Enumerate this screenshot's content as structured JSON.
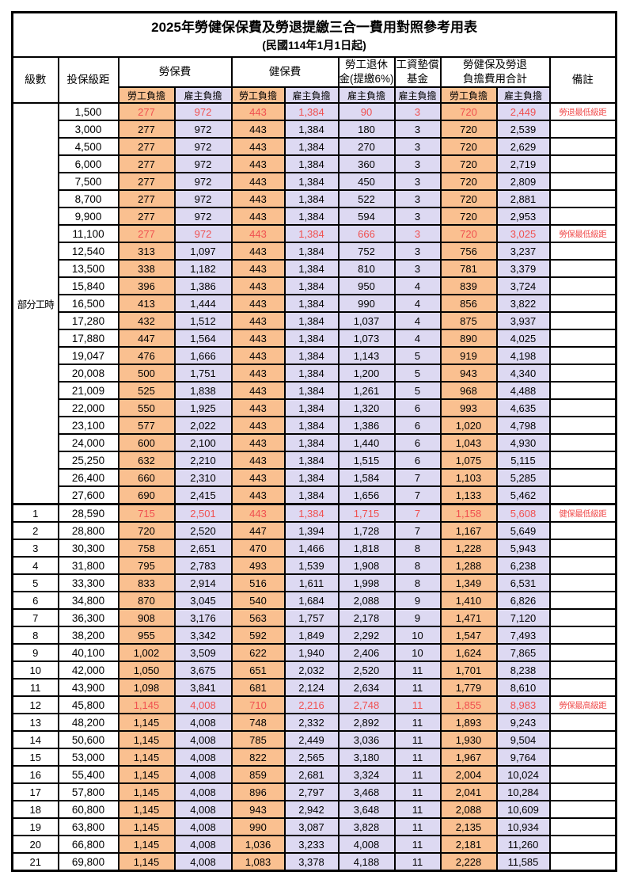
{
  "title": "2025年勞健保保費及勞退提繳三合一費用對照參考用表",
  "subtitle": "(民國114年1月1日起)",
  "colors": {
    "employee_bg": "#FAC090",
    "employer_bg": "#DDD9F2",
    "highlight_red": "#F05050"
  },
  "header": {
    "level": "級數",
    "bracket": "投保級距",
    "labor_ins": "勞保費",
    "health_ins": "健保費",
    "pension": "勞工退休\n金(提繳6%)",
    "wage_fund": "工資墊償\n基金",
    "total": "勞健保及勞退\n負擔費用合計",
    "remark": "備註",
    "employee": "勞工負擔",
    "employer": "雇主負擔"
  },
  "part_time_label": "部分工時",
  "part_time_rowspan": 23,
  "rows": [
    {
      "level": "",
      "bracket": "1,500",
      "cells": [
        "277",
        "972",
        "443",
        "1,384",
        "90",
        "3",
        "720",
        "2,449"
      ],
      "remark": "勞退最低級距",
      "red": true,
      "thick_top": false
    },
    {
      "level": "",
      "bracket": "3,000",
      "cells": [
        "277",
        "972",
        "443",
        "1,384",
        "180",
        "3",
        "720",
        "2,539"
      ],
      "remark": "",
      "red": false,
      "thick_top": false
    },
    {
      "level": "",
      "bracket": "4,500",
      "cells": [
        "277",
        "972",
        "443",
        "1,384",
        "270",
        "3",
        "720",
        "2,629"
      ],
      "remark": "",
      "red": false,
      "thick_top": false
    },
    {
      "level": "",
      "bracket": "6,000",
      "cells": [
        "277",
        "972",
        "443",
        "1,384",
        "360",
        "3",
        "720",
        "2,719"
      ],
      "remark": "",
      "red": false,
      "thick_top": false
    },
    {
      "level": "",
      "bracket": "7,500",
      "cells": [
        "277",
        "972",
        "443",
        "1,384",
        "450",
        "3",
        "720",
        "2,809"
      ],
      "remark": "",
      "red": false,
      "thick_top": false
    },
    {
      "level": "",
      "bracket": "8,700",
      "cells": [
        "277",
        "972",
        "443",
        "1,384",
        "522",
        "3",
        "720",
        "2,881"
      ],
      "remark": "",
      "red": false,
      "thick_top": false
    },
    {
      "level": "",
      "bracket": "9,900",
      "cells": [
        "277",
        "972",
        "443",
        "1,384",
        "594",
        "3",
        "720",
        "2,953"
      ],
      "remark": "",
      "red": false,
      "thick_top": false
    },
    {
      "level": "",
      "bracket": "11,100",
      "cells": [
        "277",
        "972",
        "443",
        "1,384",
        "666",
        "3",
        "720",
        "3,025"
      ],
      "remark": "勞保最低級距",
      "red": true,
      "thick_top": false
    },
    {
      "level": "",
      "bracket": "12,540",
      "cells": [
        "313",
        "1,097",
        "443",
        "1,384",
        "752",
        "3",
        "756",
        "3,237"
      ],
      "remark": "",
      "red": false,
      "thick_top": false
    },
    {
      "level": "",
      "bracket": "13,500",
      "cells": [
        "338",
        "1,182",
        "443",
        "1,384",
        "810",
        "3",
        "781",
        "3,379"
      ],
      "remark": "",
      "red": false,
      "thick_top": false
    },
    {
      "level": "",
      "bracket": "15,840",
      "cells": [
        "396",
        "1,386",
        "443",
        "1,384",
        "950",
        "4",
        "839",
        "3,724"
      ],
      "remark": "",
      "red": false,
      "thick_top": false
    },
    {
      "level": "",
      "bracket": "16,500",
      "cells": [
        "413",
        "1,444",
        "443",
        "1,384",
        "990",
        "4",
        "856",
        "3,822"
      ],
      "remark": "",
      "red": false,
      "thick_top": false
    },
    {
      "level": "",
      "bracket": "17,280",
      "cells": [
        "432",
        "1,512",
        "443",
        "1,384",
        "1,037",
        "4",
        "875",
        "3,937"
      ],
      "remark": "",
      "red": false,
      "thick_top": false
    },
    {
      "level": "",
      "bracket": "17,880",
      "cells": [
        "447",
        "1,564",
        "443",
        "1,384",
        "1,073",
        "4",
        "890",
        "4,025"
      ],
      "remark": "",
      "red": false,
      "thick_top": false
    },
    {
      "level": "",
      "bracket": "19,047",
      "cells": [
        "476",
        "1,666",
        "443",
        "1,384",
        "1,143",
        "5",
        "919",
        "4,198"
      ],
      "remark": "",
      "red": false,
      "thick_top": false
    },
    {
      "level": "",
      "bracket": "20,008",
      "cells": [
        "500",
        "1,751",
        "443",
        "1,384",
        "1,200",
        "5",
        "943",
        "4,340"
      ],
      "remark": "",
      "red": false,
      "thick_top": false
    },
    {
      "level": "",
      "bracket": "21,009",
      "cells": [
        "525",
        "1,838",
        "443",
        "1,384",
        "1,261",
        "5",
        "968",
        "4,488"
      ],
      "remark": "",
      "red": false,
      "thick_top": false
    },
    {
      "level": "",
      "bracket": "22,000",
      "cells": [
        "550",
        "1,925",
        "443",
        "1,384",
        "1,320",
        "6",
        "993",
        "4,635"
      ],
      "remark": "",
      "red": false,
      "thick_top": false
    },
    {
      "level": "",
      "bracket": "23,100",
      "cells": [
        "577",
        "2,022",
        "443",
        "1,384",
        "1,386",
        "6",
        "1,020",
        "4,798"
      ],
      "remark": "",
      "red": false,
      "thick_top": false
    },
    {
      "level": "",
      "bracket": "24,000",
      "cells": [
        "600",
        "2,100",
        "443",
        "1,384",
        "1,440",
        "6",
        "1,043",
        "4,930"
      ],
      "remark": "",
      "red": false,
      "thick_top": false
    },
    {
      "level": "",
      "bracket": "25,250",
      "cells": [
        "632",
        "2,210",
        "443",
        "1,384",
        "1,515",
        "6",
        "1,075",
        "5,115"
      ],
      "remark": "",
      "red": false,
      "thick_top": false
    },
    {
      "level": "",
      "bracket": "26,400",
      "cells": [
        "660",
        "2,310",
        "443",
        "1,384",
        "1,584",
        "7",
        "1,103",
        "5,285"
      ],
      "remark": "",
      "red": false,
      "thick_top": false
    },
    {
      "level": "",
      "bracket": "27,600",
      "cells": [
        "690",
        "2,415",
        "443",
        "1,384",
        "1,656",
        "7",
        "1,133",
        "5,462"
      ],
      "remark": "",
      "red": false,
      "thick_top": false
    },
    {
      "level": "1",
      "bracket": "28,590",
      "cells": [
        "715",
        "2,501",
        "443",
        "1,384",
        "1,715",
        "7",
        "1,158",
        "5,608"
      ],
      "remark": "健保最低級距",
      "red": true,
      "thick_top": true
    },
    {
      "level": "2",
      "bracket": "28,800",
      "cells": [
        "720",
        "2,520",
        "447",
        "1,394",
        "1,728",
        "7",
        "1,167",
        "5,649"
      ],
      "remark": "",
      "red": false,
      "thick_top": false
    },
    {
      "level": "3",
      "bracket": "30,300",
      "cells": [
        "758",
        "2,651",
        "470",
        "1,466",
        "1,818",
        "8",
        "1,228",
        "5,943"
      ],
      "remark": "",
      "red": false,
      "thick_top": false
    },
    {
      "level": "4",
      "bracket": "31,800",
      "cells": [
        "795",
        "2,783",
        "493",
        "1,539",
        "1,908",
        "8",
        "1,288",
        "6,238"
      ],
      "remark": "",
      "red": false,
      "thick_top": false
    },
    {
      "level": "5",
      "bracket": "33,300",
      "cells": [
        "833",
        "2,914",
        "516",
        "1,611",
        "1,998",
        "8",
        "1,349",
        "6,531"
      ],
      "remark": "",
      "red": false,
      "thick_top": false
    },
    {
      "level": "6",
      "bracket": "34,800",
      "cells": [
        "870",
        "3,045",
        "540",
        "1,684",
        "2,088",
        "9",
        "1,410",
        "6,826"
      ],
      "remark": "",
      "red": false,
      "thick_top": false
    },
    {
      "level": "7",
      "bracket": "36,300",
      "cells": [
        "908",
        "3,176",
        "563",
        "1,757",
        "2,178",
        "9",
        "1,471",
        "7,120"
      ],
      "remark": "",
      "red": false,
      "thick_top": false
    },
    {
      "level": "8",
      "bracket": "38,200",
      "cells": [
        "955",
        "3,342",
        "592",
        "1,849",
        "2,292",
        "10",
        "1,547",
        "7,493"
      ],
      "remark": "",
      "red": false,
      "thick_top": false
    },
    {
      "level": "9",
      "bracket": "40,100",
      "cells": [
        "1,002",
        "3,509",
        "622",
        "1,940",
        "2,406",
        "10",
        "1,624",
        "7,865"
      ],
      "remark": "",
      "red": false,
      "thick_top": false
    },
    {
      "level": "10",
      "bracket": "42,000",
      "cells": [
        "1,050",
        "3,675",
        "651",
        "2,032",
        "2,520",
        "11",
        "1,701",
        "8,238"
      ],
      "remark": "",
      "red": false,
      "thick_top": false
    },
    {
      "level": "11",
      "bracket": "43,900",
      "cells": [
        "1,098",
        "3,841",
        "681",
        "2,124",
        "2,634",
        "11",
        "1,779",
        "8,610"
      ],
      "remark": "",
      "red": false,
      "thick_top": false
    },
    {
      "level": "12",
      "bracket": "45,800",
      "cells": [
        "1,145",
        "4,008",
        "710",
        "2,216",
        "2,748",
        "11",
        "1,855",
        "8,983"
      ],
      "remark": "勞保最高級距",
      "red": true,
      "thick_top": false
    },
    {
      "level": "13",
      "bracket": "48,200",
      "cells": [
        "1,145",
        "4,008",
        "748",
        "2,332",
        "2,892",
        "11",
        "1,893",
        "9,243"
      ],
      "remark": "",
      "red": false,
      "thick_top": false
    },
    {
      "level": "14",
      "bracket": "50,600",
      "cells": [
        "1,145",
        "4,008",
        "785",
        "2,449",
        "3,036",
        "11",
        "1,930",
        "9,504"
      ],
      "remark": "",
      "red": false,
      "thick_top": false
    },
    {
      "level": "15",
      "bracket": "53,000",
      "cells": [
        "1,145",
        "4,008",
        "822",
        "2,565",
        "3,180",
        "11",
        "1,967",
        "9,764"
      ],
      "remark": "",
      "red": false,
      "thick_top": false
    },
    {
      "level": "16",
      "bracket": "55,400",
      "cells": [
        "1,145",
        "4,008",
        "859",
        "2,681",
        "3,324",
        "11",
        "2,004",
        "10,024"
      ],
      "remark": "",
      "red": false,
      "thick_top": false
    },
    {
      "level": "17",
      "bracket": "57,800",
      "cells": [
        "1,145",
        "4,008",
        "896",
        "2,797",
        "3,468",
        "11",
        "2,041",
        "10,284"
      ],
      "remark": "",
      "red": false,
      "thick_top": false
    },
    {
      "level": "18",
      "bracket": "60,800",
      "cells": [
        "1,145",
        "4,008",
        "943",
        "2,942",
        "3,648",
        "11",
        "2,088",
        "10,609"
      ],
      "remark": "",
      "red": false,
      "thick_top": false
    },
    {
      "level": "19",
      "bracket": "63,800",
      "cells": [
        "1,145",
        "4,008",
        "990",
        "3,087",
        "3,828",
        "11",
        "2,135",
        "10,934"
      ],
      "remark": "",
      "red": false,
      "thick_top": false
    },
    {
      "level": "20",
      "bracket": "66,800",
      "cells": [
        "1,145",
        "4,008",
        "1,036",
        "3,233",
        "4,008",
        "11",
        "2,181",
        "11,260"
      ],
      "remark": "",
      "red": false,
      "thick_top": false
    },
    {
      "level": "21",
      "bracket": "69,800",
      "cells": [
        "1,145",
        "4,008",
        "1,083",
        "3,378",
        "4,188",
        "11",
        "2,228",
        "11,585"
      ],
      "remark": "",
      "red": false,
      "thick_top": false
    }
  ],
  "column_kinds": [
    "emp",
    "com",
    "emp",
    "com",
    "com",
    "com",
    "emp",
    "com"
  ]
}
